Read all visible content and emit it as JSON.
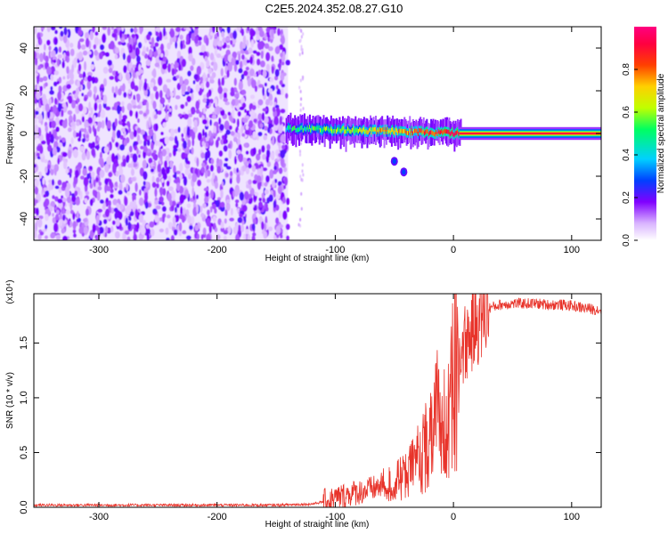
{
  "title": "C2E5.2024.352.08.27.G10",
  "chart_data": [
    {
      "type": "heatmap",
      "xlabel": "Height of straight line (km)",
      "ylabel": "Frequency (Hz)",
      "xlim": [
        -355,
        125
      ],
      "ylim": [
        -50,
        50
      ],
      "x_ticks": [
        -300,
        -200,
        -100,
        0,
        100
      ],
      "y_ticks": [
        -40,
        -20,
        0,
        20,
        40
      ],
      "colorbar": {
        "label": "Normalized spectral amplitude",
        "range": [
          0,
          1
        ],
        "ticks": [
          0.0,
          0.2,
          0.4,
          0.6,
          0.8
        ],
        "tick_labels": [
          "0.0",
          "0.2",
          "0.4",
          "0.6",
          "0.8"
        ],
        "colors": [
          "#ffffff",
          "#d9b3ff",
          "#8000ff",
          "#0040ff",
          "#00d0ff",
          "#00ff60",
          "#c0ff00",
          "#ffd000",
          "#ff4000",
          "#ff0040",
          "#ff0080"
        ]
      },
      "regions": [
        {
          "name": "noise",
          "x_range": [
            -355,
            -140
          ],
          "frequency_range": [
            -50,
            50
          ],
          "amplitude": 0.15
        },
        {
          "name": "signal_onset",
          "x_range": [
            -140,
            5
          ],
          "frequency_center": 2,
          "amplitude_range": [
            0.4,
            0.95
          ]
        },
        {
          "name": "steady_carrier",
          "x_range": [
            5,
            125
          ],
          "frequency": 0,
          "amplitude": 0.95
        },
        {
          "name": "secondary_blobs",
          "points": [
            [
              -50,
              -13
            ],
            [
              -42,
              -18
            ]
          ],
          "amplitude": 0.25
        }
      ],
      "grid": false
    },
    {
      "type": "line",
      "xlabel": "Height of straight line (km)",
      "ylabel": "SNR (10 * v/v)",
      "y_multiplier": "(x10⁴)",
      "xlim": [
        -355,
        125
      ],
      "ylim": [
        0,
        1.95
      ],
      "x_ticks": [
        -300,
        -200,
        -100,
        0,
        100
      ],
      "y_ticks": [
        0.0,
        0.5,
        1.0,
        1.5
      ],
      "y_tick_labels": [
        "0.0",
        "0.5",
        "1.0",
        "1.5"
      ],
      "series": [
        {
          "color": "#e8332a",
          "x": [
            -355,
            -300,
            -250,
            -200,
            -150,
            -120,
            -105,
            -95,
            -85,
            -75,
            -65,
            -55,
            -50,
            -45,
            -40,
            -35,
            -30,
            -25,
            -20,
            -15,
            -10,
            -5,
            0,
            5,
            10,
            15,
            20,
            25,
            30,
            40,
            50,
            60,
            70,
            80,
            90,
            100,
            110,
            125
          ],
          "y": [
            0.02,
            0.02,
            0.02,
            0.02,
            0.02,
            0.03,
            0.06,
            0.1,
            0.13,
            0.15,
            0.18,
            0.22,
            0.25,
            0.3,
            0.35,
            0.4,
            0.5,
            0.6,
            0.75,
            0.9,
            1.05,
            1.15,
            1.3,
            1.4,
            1.5,
            1.6,
            1.7,
            1.77,
            1.82,
            1.85,
            1.86,
            1.86,
            1.86,
            1.85,
            1.85,
            1.84,
            1.82,
            1.8
          ]
        }
      ],
      "grid": false
    }
  ]
}
